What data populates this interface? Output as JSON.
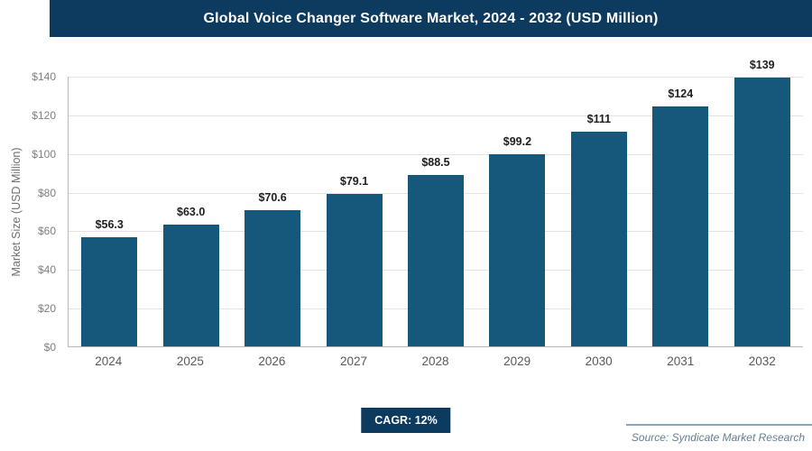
{
  "header": {
    "title": "Global Voice Changer Software Market, 2024 - 2032 (USD Million)"
  },
  "chart_data": {
    "type": "bar",
    "categories": [
      "2024",
      "2025",
      "2026",
      "2027",
      "2028",
      "2029",
      "2030",
      "2031",
      "2032"
    ],
    "values": [
      56.3,
      63.0,
      70.6,
      79.1,
      88.5,
      99.2,
      111,
      124,
      139
    ],
    "labels": [
      "$56.3",
      "$63.0",
      "$70.6",
      "$79.1",
      "$88.5",
      "$99.2",
      "$111",
      "$124",
      "$139"
    ],
    "title": "Global Voice Changer Software Market, 2024 - 2032 (USD Million)",
    "xlabel": "",
    "ylabel": "Market Size (USD Million)",
    "ylim": [
      0,
      140
    ],
    "yticks": [
      "$0",
      "$20",
      "$40",
      "$60",
      "$80",
      "$100",
      "$120",
      "$140"
    ],
    "ytick_values": [
      0,
      20,
      40,
      60,
      80,
      100,
      120,
      140
    ],
    "grid": true,
    "legend": "none",
    "bar_color": "#16577c"
  },
  "footer": {
    "cagr_label": "CAGR: 12%",
    "source": "Source: Syndicate Market Research"
  },
  "colors": {
    "header_bg": "#0d3a5f",
    "bar": "#16577c",
    "gridline": "#e3e3e3",
    "axis": "#b8b8b8",
    "cagr_bg": "#0d3a5f",
    "source_text": "#64808f"
  }
}
